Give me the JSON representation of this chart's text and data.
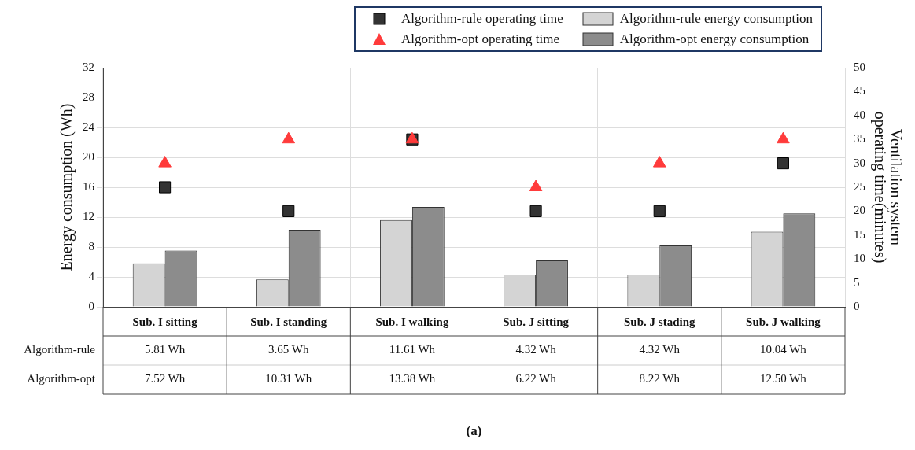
{
  "chart_data": {
    "type": "bar",
    "ylabel": "Energy consumption (Wh)",
    "y2label": "Ventilation system operating time(minutes)",
    "categories": [
      "Sub. I sitting",
      "Sub. I standing",
      "Sub. I walking",
      "Sub. J sitting",
      "Sub. J stading",
      "Sub. J walking"
    ],
    "series": [
      {
        "name": "Algorithm-rule operating time",
        "type": "scatter",
        "axis": "y2",
        "marker": "square",
        "color": "#333333",
        "values": [
          25,
          20,
          35,
          20,
          20,
          30
        ]
      },
      {
        "name": "Algorithm-rule energy consumption",
        "color": "#d4d4d4",
        "values": [
          5.81,
          3.65,
          11.61,
          4.32,
          4.32,
          10.04
        ],
        "value_labels": [
          "5.81 Wh",
          "3.65 Wh",
          "11.61 Wh",
          "4.32 Wh",
          "4.32 Wh",
          "10.04 Wh"
        ]
      },
      {
        "name": "Algorithm-opt operating time",
        "type": "scatter",
        "axis": "y2",
        "marker": "triangle",
        "color": "#ff3b3b",
        "values": [
          30,
          35,
          35,
          25,
          30,
          35
        ]
      },
      {
        "name": "Algorithm-opt energy consumption",
        "color": "#8c8c8c",
        "values": [
          7.52,
          10.31,
          13.38,
          6.22,
          8.22,
          12.5
        ],
        "value_labels": [
          "7.52 Wh",
          "10.31 Wh",
          "13.38 Wh",
          "6.22 Wh",
          "8.22 Wh",
          "12.50 Wh"
        ]
      }
    ],
    "ylim": [
      0,
      32
    ],
    "yticks": [
      0,
      4,
      8,
      12,
      16,
      20,
      24,
      28,
      32
    ],
    "y2lim": [
      0,
      50
    ],
    "y2ticks": [
      0,
      5,
      10,
      15,
      20,
      25,
      30,
      35,
      40,
      45,
      50
    ],
    "grid": true,
    "legend": "top right",
    "annotations": [
      "Algorithm-rule",
      "Algorithm-opt",
      "(a)"
    ]
  }
}
